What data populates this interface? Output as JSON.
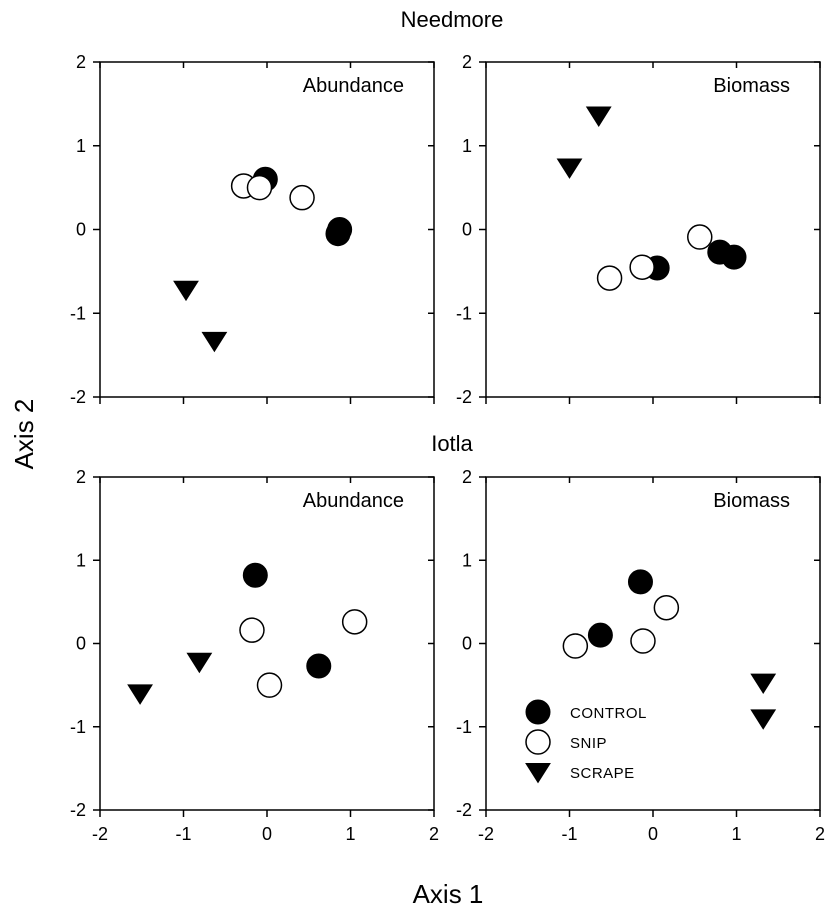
{
  "figure": {
    "xlabel": "Axis 1",
    "ylabel": "Axis 2"
  },
  "legend": {
    "placement": "lower-left of bottom-right panel",
    "entries": [
      {
        "label": "CONTROL",
        "marker": "filled-circle"
      },
      {
        "label": "SNIP",
        "marker": "open-circle"
      },
      {
        "label": "SCRAPE",
        "marker": "filled-down-triangle"
      }
    ]
  },
  "chart_data": [
    {
      "type": "scatter",
      "site": "Needmore",
      "title": "Abundance",
      "xlim": [
        -2,
        2
      ],
      "ylim": [
        -2,
        2
      ],
      "xticks": [
        -2,
        -1,
        0,
        1,
        2
      ],
      "yticks": [
        -2,
        -1,
        0,
        1,
        2
      ],
      "series": [
        {
          "name": "CONTROL",
          "points": [
            [
              -0.02,
              0.6
            ],
            [
              0.87,
              0.0
            ],
            [
              0.85,
              -0.05
            ]
          ]
        },
        {
          "name": "SNIP",
          "points": [
            [
              -0.28,
              0.52
            ],
            [
              -0.09,
              0.5
            ],
            [
              0.42,
              0.38
            ]
          ]
        },
        {
          "name": "SCRAPE",
          "points": [
            [
              -0.97,
              -0.72
            ],
            [
              -0.63,
              -1.33
            ]
          ]
        }
      ]
    },
    {
      "type": "scatter",
      "site": "Needmore",
      "title": "Biomass",
      "xlim": [
        -2,
        2
      ],
      "ylim": [
        -2,
        2
      ],
      "xticks": [
        -2,
        -1,
        0,
        1,
        2
      ],
      "yticks": [
        -2,
        -1,
        0,
        1,
        2
      ],
      "series": [
        {
          "name": "CONTROL",
          "points": [
            [
              0.05,
              -0.46
            ],
            [
              0.8,
              -0.27
            ],
            [
              0.97,
              -0.33
            ]
          ]
        },
        {
          "name": "SNIP",
          "points": [
            [
              -0.52,
              -0.58
            ],
            [
              -0.13,
              -0.45
            ],
            [
              0.56,
              -0.09
            ]
          ]
        },
        {
          "name": "SCRAPE",
          "points": [
            [
              -0.65,
              1.36
            ],
            [
              -1.0,
              0.74
            ]
          ]
        }
      ]
    },
    {
      "type": "scatter",
      "site": "Iotla",
      "title": "Abundance",
      "xlim": [
        -2,
        2
      ],
      "ylim": [
        -2,
        2
      ],
      "xticks": [
        -2,
        -1,
        0,
        1,
        2
      ],
      "yticks": [
        -2,
        -1,
        0,
        1,
        2
      ],
      "series": [
        {
          "name": "CONTROL",
          "points": [
            [
              -0.14,
              0.82
            ],
            [
              0.62,
              -0.27
            ]
          ]
        },
        {
          "name": "SNIP",
          "points": [
            [
              -0.18,
              0.16
            ],
            [
              0.03,
              -0.5
            ],
            [
              1.05,
              0.26
            ]
          ]
        },
        {
          "name": "SCRAPE",
          "points": [
            [
              -1.52,
              -0.6
            ],
            [
              -0.81,
              -0.22
            ]
          ]
        }
      ]
    },
    {
      "type": "scatter",
      "site": "Iotla",
      "title": "Biomass",
      "xlim": [
        -2,
        2
      ],
      "ylim": [
        -2,
        2
      ],
      "xticks": [
        -2,
        -1,
        0,
        1,
        2
      ],
      "yticks": [
        -2,
        -1,
        0,
        1,
        2
      ],
      "series": [
        {
          "name": "CONTROL",
          "points": [
            [
              -0.15,
              0.74
            ],
            [
              -0.63,
              0.1
            ]
          ]
        },
        {
          "name": "SNIP",
          "points": [
            [
              0.16,
              0.43
            ],
            [
              -0.12,
              0.03
            ],
            [
              -0.93,
              -0.03
            ]
          ]
        },
        {
          "name": "SCRAPE",
          "points": [
            [
              1.32,
              -0.47
            ],
            [
              1.32,
              -0.9
            ]
          ]
        }
      ]
    }
  ]
}
